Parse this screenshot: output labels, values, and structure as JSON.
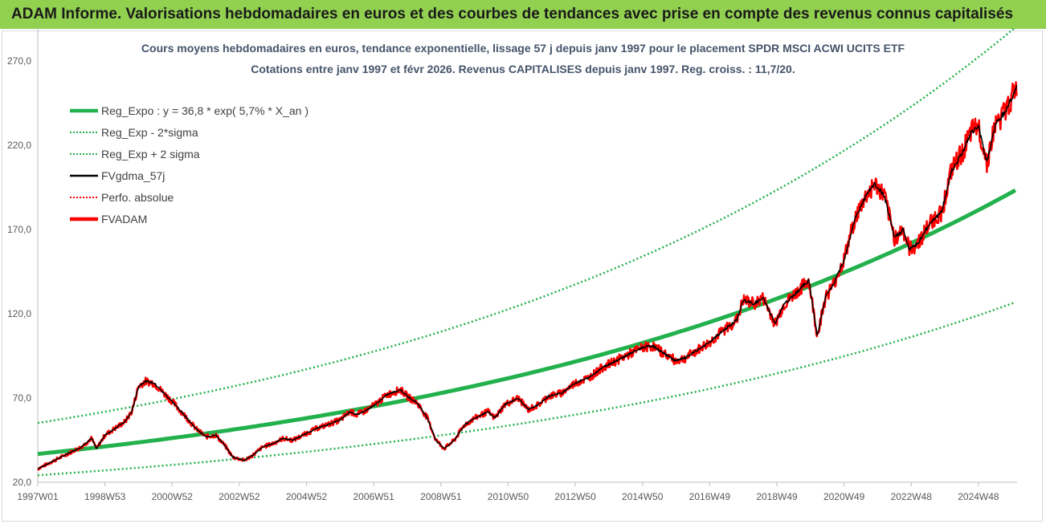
{
  "header": {
    "title": "ADAM Informe. Valorisations hebdomadaires en euros et des courbes de tendances avec prise en compte des revenus connus capitalisés"
  },
  "chart_data": {
    "type": "line",
    "title": "Cours moyens hebdomadaires en euros, tendance exponentielle, lissage 57 j depuis janv 1997  pour le placement SPDR MSCI ACWI UCITS ETF",
    "subtitle": "Cotations entre janv 1997 et févr 2026.  Revenus CAPITALISES  depuis janv 1997.  Reg. croiss. : 11,7/20.",
    "xlabel": "",
    "ylabel": "",
    "x_range": [
      1997.0,
      2026.15
    ],
    "ylim": [
      20,
      290
    ],
    "y_ticks": [
      "20,0",
      "70,0",
      "120,0",
      "170,0",
      "220,0",
      "270,0"
    ],
    "x_ticks": [
      {
        "label": "1997W01",
        "t": 1997.0
      },
      {
        "label": "1998W53",
        "t": 1999.0
      },
      {
        "label": "2000W52",
        "t": 2001.0
      },
      {
        "label": "2002W52",
        "t": 2003.0
      },
      {
        "label": "2004W52",
        "t": 2005.0
      },
      {
        "label": "2006W51",
        "t": 2007.0
      },
      {
        "label": "2008W51",
        "t": 2009.0
      },
      {
        "label": "2010W50",
        "t": 2011.0
      },
      {
        "label": "2012W50",
        "t": 2013.0
      },
      {
        "label": "2014W50",
        "t": 2015.0
      },
      {
        "label": "2016W49",
        "t": 2017.0
      },
      {
        "label": "2018W49",
        "t": 2019.0
      },
      {
        "label": "2020W49",
        "t": 2021.0
      },
      {
        "label": "2022W48",
        "t": 2023.0
      },
      {
        "label": "2024W48",
        "t": 2025.0
      }
    ],
    "grid": false,
    "legend_position": "top-left",
    "legend": [
      {
        "name": "Reg_Expo : y = 36,8 * exp( 5,7% *  X_an )",
        "color": "#22b14c",
        "style": "thick"
      },
      {
        "name": "Reg_Exp - 2*sigma",
        "color": "#22b14c",
        "style": "dotted"
      },
      {
        "name": "Reg_Exp + 2 sigma",
        "color": "#22b14c",
        "style": "dotted"
      },
      {
        "name": "FVgdma_57j",
        "color": "#000000",
        "style": "solid"
      },
      {
        "name": "Perfo. absolue",
        "color": "#ff0000",
        "style": "dotted"
      },
      {
        "name": "FVADAM",
        "color": "#ff0000",
        "style": "thick"
      }
    ],
    "regression": {
      "a": 36.8,
      "rate": 0.057,
      "lower_factor": 0.656,
      "upper_factor": 1.5
    },
    "price_points": [
      [
        1997.0,
        28
      ],
      [
        1997.5,
        33
      ],
      [
        1998.0,
        38
      ],
      [
        1998.3,
        41
      ],
      [
        1998.6,
        46
      ],
      [
        1998.75,
        40
      ],
      [
        1999.0,
        48
      ],
      [
        1999.3,
        52
      ],
      [
        1999.6,
        56
      ],
      [
        1999.8,
        62
      ],
      [
        2000.0,
        77
      ],
      [
        2000.2,
        80
      ],
      [
        2000.45,
        79
      ],
      [
        2000.7,
        74
      ],
      [
        2001.0,
        68
      ],
      [
        2001.4,
        59
      ],
      [
        2001.7,
        52
      ],
      [
        2002.0,
        47
      ],
      [
        2002.3,
        48
      ],
      [
        2002.6,
        41
      ],
      [
        2002.8,
        35
      ],
      [
        2003.15,
        33
      ],
      [
        2003.4,
        36
      ],
      [
        2003.7,
        41
      ],
      [
        2004.0,
        43
      ],
      [
        2004.3,
        46
      ],
      [
        2004.6,
        45
      ],
      [
        2005.0,
        49
      ],
      [
        2005.3,
        52
      ],
      [
        2005.6,
        54
      ],
      [
        2006.0,
        57
      ],
      [
        2006.3,
        62
      ],
      [
        2006.5,
        60
      ],
      [
        2006.8,
        63
      ],
      [
        2007.1,
        67
      ],
      [
        2007.4,
        72
      ],
      [
        2007.8,
        75
      ],
      [
        2008.0,
        71
      ],
      [
        2008.3,
        67
      ],
      [
        2008.6,
        58
      ],
      [
        2008.85,
        45
      ],
      [
        2009.1,
        40
      ],
      [
        2009.4,
        45
      ],
      [
        2009.7,
        54
      ],
      [
        2010.0,
        58
      ],
      [
        2010.4,
        62
      ],
      [
        2010.6,
        58
      ],
      [
        2010.9,
        66
      ],
      [
        2011.3,
        70
      ],
      [
        2011.6,
        63
      ],
      [
        2011.9,
        66
      ],
      [
        2012.2,
        71
      ],
      [
        2012.6,
        73
      ],
      [
        2013.0,
        79
      ],
      [
        2013.4,
        82
      ],
      [
        2013.8,
        88
      ],
      [
        2014.2,
        92
      ],
      [
        2014.6,
        96
      ],
      [
        2015.0,
        100
      ],
      [
        2015.3,
        101
      ],
      [
        2015.6,
        97
      ],
      [
        2016.0,
        92
      ],
      [
        2016.3,
        94
      ],
      [
        2016.6,
        98
      ],
      [
        2017.0,
        103
      ],
      [
        2017.4,
        110
      ],
      [
        2017.8,
        116
      ],
      [
        2018.0,
        128
      ],
      [
        2018.3,
        126
      ],
      [
        2018.6,
        129
      ],
      [
        2018.95,
        114
      ],
      [
        2019.2,
        125
      ],
      [
        2019.6,
        133
      ],
      [
        2019.95,
        140
      ],
      [
        2020.2,
        107
      ],
      [
        2020.45,
        130
      ],
      [
        2020.7,
        138
      ],
      [
        2021.0,
        152
      ],
      [
        2021.3,
        175
      ],
      [
        2021.6,
        188
      ],
      [
        2021.9,
        197
      ],
      [
        2022.2,
        190
      ],
      [
        2022.5,
        165
      ],
      [
        2022.75,
        170
      ],
      [
        2022.95,
        158
      ],
      [
        2023.2,
        162
      ],
      [
        2023.6,
        175
      ],
      [
        2023.9,
        180
      ],
      [
        2024.2,
        205
      ],
      [
        2024.5,
        215
      ],
      [
        2024.8,
        228
      ],
      [
        2025.0,
        231
      ],
      [
        2025.25,
        210
      ],
      [
        2025.5,
        232
      ],
      [
        2025.8,
        240
      ],
      [
        2026.15,
        255
      ]
    ]
  }
}
